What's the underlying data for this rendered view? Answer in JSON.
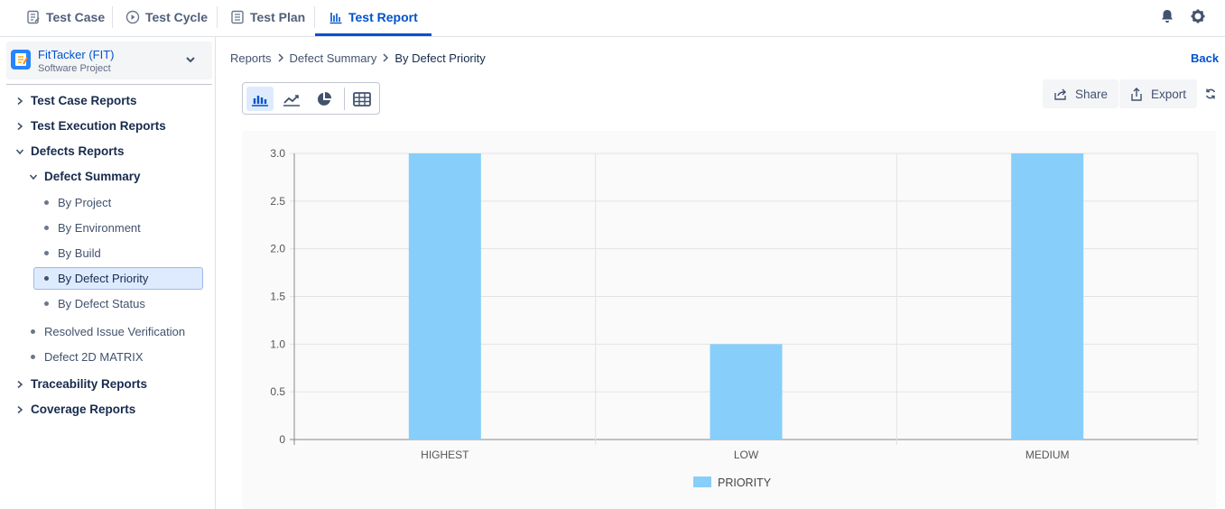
{
  "nav": {
    "tabs": [
      {
        "label": "Test Case",
        "icon": "test-case-icon"
      },
      {
        "label": "Test Cycle",
        "icon": "test-cycle-icon"
      },
      {
        "label": "Test Plan",
        "icon": "test-plan-icon"
      },
      {
        "label": "Test Report",
        "icon": "test-report-icon",
        "active": true
      }
    ],
    "right_icons": [
      "bell-icon",
      "gear-icon"
    ]
  },
  "project": {
    "name": "FitTacker (FIT)",
    "type": "Software Project"
  },
  "sidebar": {
    "test_case_reports": "Test Case Reports",
    "test_execution_reports": "Test Execution Reports",
    "defects_reports": "Defects Reports",
    "defect_summary": "Defect Summary",
    "by_project": "By Project",
    "by_environment": "By Environment",
    "by_build": "By Build",
    "by_defect_priority": "By Defect Priority",
    "by_defect_status": "By Defect Status",
    "resolved_issue_verification": "Resolved Issue Verification",
    "defect_2d_matrix": "Defect 2D MATRIX",
    "traceability_reports": "Traceability Reports",
    "coverage_reports": "Coverage Reports"
  },
  "breadcrumb": {
    "items": [
      "Reports",
      "Defect Summary",
      "By Defect Priority"
    ]
  },
  "actions": {
    "back": "Back",
    "share": "Share",
    "export": "Export"
  },
  "colors": {
    "accent": "#0052cc",
    "bar": "#87cefa"
  },
  "chart_data": {
    "type": "bar",
    "categories": [
      "HIGHEST",
      "LOW",
      "MEDIUM"
    ],
    "series": [
      {
        "name": "PRIORITY",
        "values": [
          3,
          1,
          3
        ]
      }
    ],
    "y_ticks": [
      "0",
      "0.5",
      "1.0",
      "1.5",
      "2.0",
      "2.5",
      "3.0"
    ],
    "ylim": [
      0,
      3
    ],
    "grid": true,
    "legend": "bottom-center"
  }
}
